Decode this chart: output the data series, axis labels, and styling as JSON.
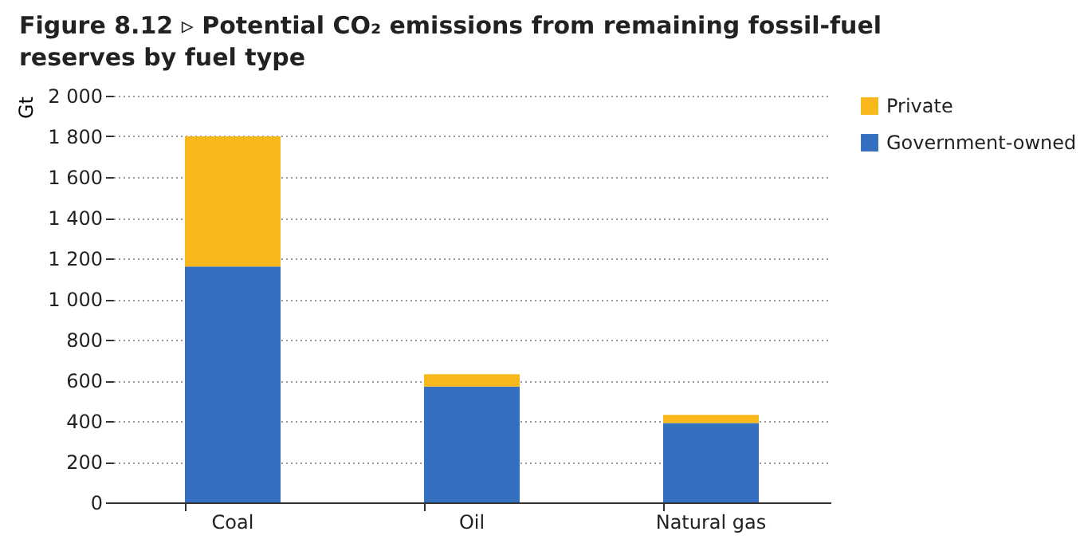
{
  "chart_data": {
    "type": "bar",
    "title": "Figure 8.12 ▹ Potential CO₂ emissions from remaining fossil-fuel reserves by fuel type",
    "ylabel": "Gt",
    "categories": [
      "Coal",
      "Oil",
      "Natural gas"
    ],
    "stacked": true,
    "series": [
      {
        "name": "Government-owned",
        "color": "#3570c0",
        "values": [
          1160,
          570,
          390
        ]
      },
      {
        "name": "Private",
        "color": "#f8b81c",
        "values": [
          640,
          60,
          40
        ]
      }
    ],
    "ylim": [
      0,
      2000
    ],
    "yticks": [
      0,
      200,
      400,
      600,
      800,
      {
        "value": 1000,
        "label": "1 000"
      },
      {
        "value": 1200,
        "label": "1 200"
      },
      {
        "value": 1400,
        "label": "1 400"
      },
      {
        "value": 1600,
        "label": "1 600"
      },
      {
        "value": 1800,
        "label": "1 800"
      },
      {
        "value": 2000,
        "label": "2 000"
      }
    ],
    "grid": "y",
    "legend": "top right"
  }
}
